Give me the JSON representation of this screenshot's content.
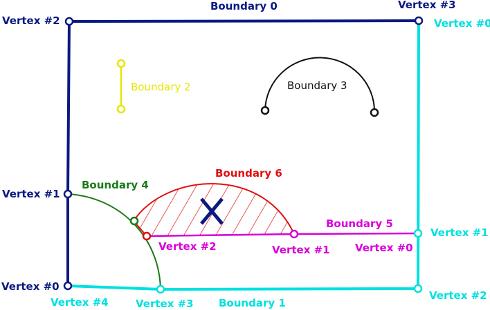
{
  "colors": {
    "navy": "#0a1a80",
    "cyan": "#00e0e0",
    "yellow": "#e6e600",
    "black": "#111111",
    "green": "#1a7a1a",
    "red": "#e01010",
    "magenta": "#d800d8",
    "crossmark": "#0a1a80"
  },
  "boundaries": {
    "b0": "Boundary 0",
    "b1": "Boundary 1",
    "b2": "Boundary 2",
    "b3": "Boundary 3",
    "b4": "Boundary 4",
    "b5": "Boundary 5",
    "b6": "Boundary 6"
  },
  "vertices": {
    "b0": {
      "v0": "Vertex #0",
      "v1": "Vertex #1",
      "v2": "Vertex #2",
      "v3": "Vertex #3"
    },
    "b1": {
      "v0": "Vertex #0",
      "v1": "Vertex #1",
      "v2": "Vertex #2",
      "v3": "Vertex #3",
      "v4": "Vertex #4"
    },
    "b5": {
      "v0": "Vertex #0",
      "v1": "Vertex #1",
      "v2": "Vertex #2"
    }
  },
  "icons": {
    "hatched_region": "cross-mark-icon"
  }
}
